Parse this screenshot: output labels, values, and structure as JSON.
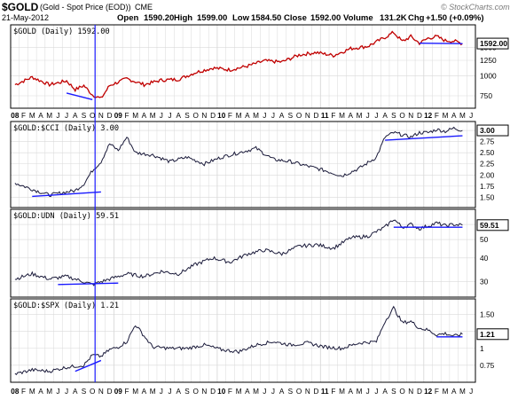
{
  "header": {
    "symbol": "$GOLD",
    "description": "(Gold - Spot Price (EOD))",
    "exchange": "CME",
    "date": "21-May-2012",
    "brand": "© StockCharts.com",
    "quote": {
      "open_label": "Open",
      "open": "1590.20",
      "high_label": "High",
      "high": "1599.00",
      "low_label": "Low",
      "low": "1584.50",
      "close_label": "Close",
      "close": "1592.00",
      "volume_label": "Volume",
      "volume": "131.2K",
      "chg_label": "Chg",
      "chg": "+1.50 (+0.09%)"
    }
  },
  "colors": {
    "gold_line": "#c00000",
    "ratio_line": "#1a1a3a",
    "trendline": "#1a1aff",
    "grid": "#d9d9d9",
    "frame": "#000000",
    "last_value_box": "#000000"
  },
  "time_axis": {
    "labels_top": [
      "08",
      "F",
      "M",
      "A",
      "M",
      "J",
      "J",
      "A",
      "S",
      "O",
      "N",
      "D",
      "09",
      "F",
      "M",
      "A",
      "M",
      "J",
      "J",
      "A",
      "S",
      "O",
      "N",
      "D",
      "10",
      "F",
      "M",
      "A",
      "M",
      "J",
      "J",
      "A",
      "S",
      "O",
      "N",
      "D",
      "11",
      "F",
      "M",
      "A",
      "M",
      "J",
      "J",
      "A",
      "S",
      "O",
      "N",
      "D",
      "12",
      "F",
      "M",
      "A",
      "M",
      "J"
    ],
    "labels_bottom": [
      "08",
      "F",
      "M",
      "A",
      "M",
      "J",
      "J",
      "A",
      "S",
      "O",
      "N",
      "D",
      "09",
      "F",
      "M",
      "A",
      "M",
      "J",
      "J",
      "A",
      "S",
      "O",
      "N",
      "D",
      "10",
      "F",
      "M",
      "A",
      "M",
      "J",
      "J",
      "A",
      "S",
      "O",
      "N",
      "D",
      "11",
      "F",
      "M",
      "A",
      "M",
      "J",
      "J",
      "A",
      "S",
      "O",
      "N",
      "D",
      "12",
      "F",
      "M",
      "A",
      "M",
      "J"
    ]
  },
  "chart_data": [
    {
      "type": "line",
      "panel_label": "$GOLD (Daily) 1592.00",
      "last_value": "1592.00",
      "log_scale": true,
      "grid": true,
      "yticks": [
        750,
        1000,
        1250,
        1500
      ],
      "ylim": [
        660,
        1980
      ],
      "series": [
        {
          "x": [
            "2008-01",
            "2008-03",
            "2008-05",
            "2008-07",
            "2008-08",
            "2008-09",
            "2008-10",
            "2008-11",
            "2008-12",
            "2009-02",
            "2009-04",
            "2009-06",
            "2009-08",
            "2009-10",
            "2009-12",
            "2010-02",
            "2010-04",
            "2010-06",
            "2010-08",
            "2010-10",
            "2010-12",
            "2011-02",
            "2011-04",
            "2011-06",
            "2011-08",
            "2011-09",
            "2011-10",
            "2011-11",
            "2011-12",
            "2012-01",
            "2012-02",
            "2012-03",
            "2012-04",
            "2012-05"
          ],
          "values": [
            880,
            980,
            880,
            930,
            820,
            870,
            760,
            720,
            870,
            960,
            880,
            940,
            950,
            1050,
            1120,
            1090,
            1150,
            1240,
            1220,
            1350,
            1400,
            1340,
            1480,
            1530,
            1740,
            1870,
            1640,
            1760,
            1600,
            1720,
            1760,
            1660,
            1650,
            1592
          ]
        }
      ]
    },
    {
      "type": "line",
      "panel_label": "$GOLD:$CCI (Daily) 3.00",
      "last_value": "3.00",
      "grid": true,
      "yticks": [
        1.5,
        1.75,
        2.0,
        2.25,
        2.5,
        2.75,
        3.0
      ],
      "ylim": [
        1.35,
        3.12
      ],
      "series": [
        {
          "x": [
            "2008-01",
            "2008-03",
            "2008-05",
            "2008-07",
            "2008-08",
            "2008-09",
            "2008-10",
            "2008-11",
            "2008-12",
            "2009-01",
            "2009-02",
            "2009-03",
            "2009-05",
            "2009-07",
            "2009-09",
            "2009-11",
            "2010-01",
            "2010-03",
            "2010-05",
            "2010-07",
            "2010-09",
            "2010-11",
            "2011-01",
            "2011-03",
            "2011-05",
            "2011-07",
            "2011-08",
            "2011-09",
            "2011-10",
            "2011-11",
            "2011-12",
            "2012-01",
            "2012-02",
            "2012-03",
            "2012-04",
            "2012-05"
          ],
          "values": [
            1.82,
            1.68,
            1.55,
            1.62,
            1.65,
            1.8,
            2.1,
            2.3,
            2.7,
            2.55,
            2.85,
            2.5,
            2.45,
            2.3,
            2.4,
            2.25,
            2.4,
            2.5,
            2.6,
            2.35,
            2.3,
            2.2,
            2.1,
            1.98,
            2.15,
            2.4,
            2.85,
            2.95,
            2.9,
            2.85,
            2.95,
            2.95,
            3.02,
            2.98,
            3.05,
            3.0
          ]
        }
      ]
    },
    {
      "type": "line",
      "panel_label": "$GOLD:UDN (Daily) 59.51",
      "last_value": "59.51",
      "log_scale": true,
      "grid": true,
      "yticks": [
        30,
        40,
        50,
        60
      ],
      "ylim": [
        26,
        69
      ],
      "series": [
        {
          "x": [
            "2008-01",
            "2008-03",
            "2008-05",
            "2008-07",
            "2008-09",
            "2008-10",
            "2008-11",
            "2008-12",
            "2009-02",
            "2009-04",
            "2009-06",
            "2009-08",
            "2009-10",
            "2009-12",
            "2010-02",
            "2010-04",
            "2010-06",
            "2010-08",
            "2010-10",
            "2010-12",
            "2011-02",
            "2011-04",
            "2011-06",
            "2011-08",
            "2011-09",
            "2011-10",
            "2011-11",
            "2011-12",
            "2012-01",
            "2012-02",
            "2012-03",
            "2012-04",
            "2012-05"
          ],
          "values": [
            31,
            33,
            31,
            32,
            30,
            29,
            30,
            31,
            33,
            32,
            34,
            33,
            37,
            40,
            38,
            42,
            44,
            42,
            46,
            47,
            45,
            51,
            52,
            58,
            64,
            58,
            60,
            57,
            59,
            61,
            59,
            60,
            59.51
          ]
        }
      ]
    },
    {
      "type": "line",
      "panel_label": "$GOLD:$SPX (Daily) 1.21",
      "last_value": "1.21",
      "grid": true,
      "yticks": [
        0.75,
        1.0,
        1.25,
        1.5
      ],
      "ylim": [
        0.55,
        1.68
      ],
      "series": [
        {
          "x": [
            "2008-01",
            "2008-03",
            "2008-05",
            "2008-07",
            "2008-09",
            "2008-10",
            "2008-11",
            "2008-12",
            "2009-01",
            "2009-02",
            "2009-03",
            "2009-05",
            "2009-07",
            "2009-09",
            "2009-11",
            "2010-01",
            "2010-03",
            "2010-05",
            "2010-07",
            "2010-09",
            "2010-11",
            "2011-01",
            "2011-03",
            "2011-05",
            "2011-07",
            "2011-08",
            "2011-09",
            "2011-10",
            "2011-11",
            "2011-12",
            "2012-01",
            "2012-02",
            "2012-03",
            "2012-04",
            "2012-05"
          ],
          "values": [
            0.62,
            0.68,
            0.66,
            0.72,
            0.75,
            0.9,
            0.88,
            0.98,
            1.02,
            1.1,
            1.35,
            1.02,
            1.0,
            1.0,
            1.05,
            0.98,
            0.95,
            1.05,
            1.1,
            1.05,
            1.08,
            1.02,
            1.0,
            1.08,
            1.1,
            1.4,
            1.6,
            1.38,
            1.4,
            1.3,
            1.27,
            1.2,
            1.22,
            1.18,
            1.21
          ]
        }
      ]
    }
  ]
}
